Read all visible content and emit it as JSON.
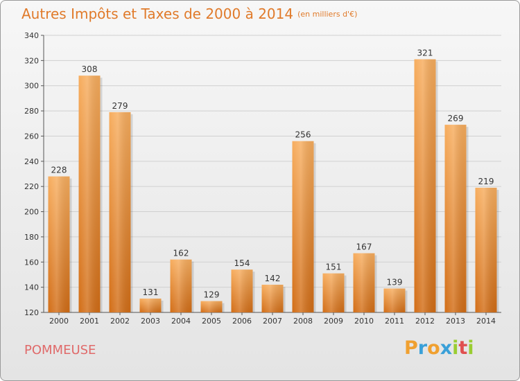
{
  "title": "Autres Impôts et Taxes de 2000 à 2014",
  "unit": "(en milliers d'€)",
  "commune": "POMMEUSE",
  "logo": {
    "letters": [
      "P",
      "r",
      "o",
      "x",
      "i",
      "t",
      "i"
    ],
    "colors": [
      "#f0a030",
      "#3aa0d8",
      "#f0a030",
      "#3aa0d8",
      "#9acd32",
      "#e05050",
      "#9acd32"
    ]
  },
  "colors": {
    "bar": "#f0902f",
    "bar_light": "#f7b062",
    "bar_dark": "#d5701a",
    "title": "#e07a2a",
    "commune": "#e06a6a"
  },
  "chart_data": {
    "type": "bar",
    "categories": [
      "2000",
      "2001",
      "2002",
      "2003",
      "2004",
      "2005",
      "2006",
      "2007",
      "2008",
      "2009",
      "2010",
      "2011",
      "2012",
      "2013",
      "2014"
    ],
    "values": [
      228,
      308,
      279,
      131,
      162,
      129,
      154,
      142,
      256,
      151,
      167,
      139,
      321,
      269,
      219
    ],
    "title": "Autres Impôts et Taxes de 2000 à 2014",
    "ylim": [
      120,
      340
    ],
    "yticks": [
      120,
      140,
      160,
      180,
      200,
      220,
      240,
      260,
      280,
      300,
      320,
      340
    ],
    "grid": true
  }
}
